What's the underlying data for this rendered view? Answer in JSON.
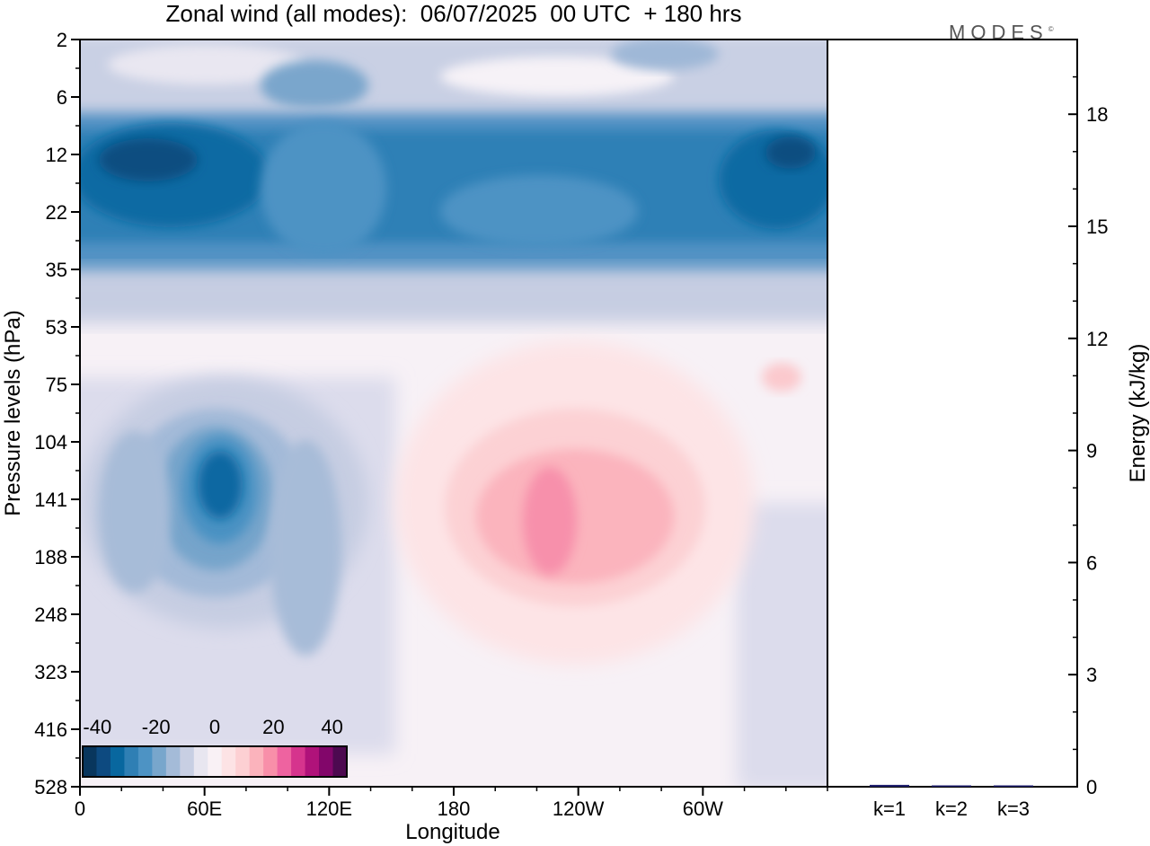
{
  "title": "Zonal wind (all modes):  06/07/2025  00 UTC  + 180 hrs",
  "logo": {
    "text": "MODES",
    "mark": "©"
  },
  "chart_data": [
    {
      "type": "heatmap",
      "title": "Zonal wind (all modes):  06/07/2025  00 UTC  + 180 hrs",
      "xlabel": "Longitude",
      "ylabel": "Pressure levels (hPa)",
      "x_ticks": [
        "0",
        "60E",
        "120E",
        "180",
        "120W",
        "60W"
      ],
      "x_range_deg": [
        0,
        360
      ],
      "y_ticks": [
        "2",
        "6",
        "12",
        "22",
        "35",
        "53",
        "75",
        "104",
        "141",
        "188",
        "248",
        "323",
        "416",
        "528"
      ],
      "y_scale": "log, top = 2 hPa, bottom = 528 hPa",
      "colorbar": {
        "ticks": [
          "-40",
          "-20",
          "0",
          "20",
          "40"
        ],
        "range": [
          -45,
          45
        ],
        "step": 5,
        "colors": [
          "#08365d",
          "#0d4a80",
          "#08679f",
          "#2f7fb4",
          "#4d93c4",
          "#78a6cc",
          "#a4bbd8",
          "#c8cfe3",
          "#e8e6f0",
          "#f9f1f5",
          "#fde3e5",
          "#fdd0d3",
          "#fbb3bc",
          "#f88fa9",
          "#ee63a0",
          "#d6348d",
          "#b0127a",
          "#82066a",
          "#4d0950"
        ]
      },
      "features": [
        {
          "desc": "westward jet band",
          "level_range_hPa": [
            9,
            30
          ],
          "lon_range": "0-360",
          "value": -30
        },
        {
          "desc": "upper band",
          "level_range_hPa": [
            2,
            6
          ],
          "value": -15
        },
        {
          "desc": "negative core",
          "lon": "65E",
          "level_hPa": 135,
          "value": -30
        },
        {
          "desc": "positive core",
          "lon": "110W",
          "level_hPa": 150,
          "value": 15
        }
      ],
      "grid": false
    },
    {
      "type": "bar",
      "categories": [
        "k=1",
        "k=2",
        "k=3"
      ],
      "values": [
        0.05,
        0.02,
        0.01
      ],
      "ylabel": "Energy (kJ/kg)",
      "ylim": [
        0,
        20
      ],
      "y_ticks": [
        "0",
        "3",
        "6",
        "9",
        "12",
        "15",
        "18"
      ],
      "bar_color": "#1f1f6e"
    }
  ]
}
